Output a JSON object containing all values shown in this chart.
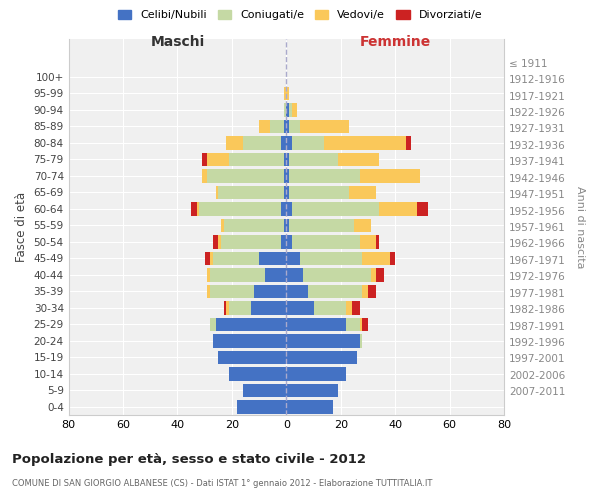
{
  "age_groups": [
    "0-4",
    "5-9",
    "10-14",
    "15-19",
    "20-24",
    "25-29",
    "30-34",
    "35-39",
    "40-44",
    "45-49",
    "50-54",
    "55-59",
    "60-64",
    "65-69",
    "70-74",
    "75-79",
    "80-84",
    "85-89",
    "90-94",
    "95-99",
    "100+"
  ],
  "birth_years": [
    "2007-2011",
    "2002-2006",
    "1997-2001",
    "1992-1996",
    "1987-1991",
    "1982-1986",
    "1977-1981",
    "1972-1976",
    "1967-1971",
    "1962-1966",
    "1957-1961",
    "1952-1956",
    "1947-1951",
    "1942-1946",
    "1937-1941",
    "1932-1936",
    "1927-1931",
    "1922-1926",
    "1917-1921",
    "1912-1916",
    "≤ 1911"
  ],
  "maschi": {
    "celibi": [
      18,
      16,
      21,
      25,
      27,
      26,
      13,
      12,
      8,
      10,
      2,
      1,
      2,
      1,
      1,
      1,
      2,
      1,
      0,
      0,
      0
    ],
    "coniugati": [
      0,
      0,
      0,
      0,
      0,
      2,
      8,
      16,
      20,
      17,
      22,
      22,
      30,
      24,
      28,
      20,
      14,
      5,
      1,
      0,
      0
    ],
    "vedovi": [
      0,
      0,
      0,
      0,
      0,
      0,
      1,
      1,
      1,
      1,
      1,
      1,
      1,
      1,
      2,
      8,
      6,
      4,
      0,
      1,
      0
    ],
    "divorziati": [
      0,
      0,
      0,
      0,
      0,
      0,
      1,
      0,
      0,
      2,
      2,
      0,
      2,
      0,
      0,
      2,
      0,
      0,
      0,
      0,
      0
    ]
  },
  "femmine": {
    "nubili": [
      17,
      19,
      22,
      26,
      27,
      22,
      10,
      8,
      6,
      5,
      2,
      1,
      2,
      1,
      1,
      1,
      2,
      1,
      1,
      0,
      0
    ],
    "coniugate": [
      0,
      0,
      0,
      0,
      1,
      5,
      12,
      20,
      25,
      23,
      25,
      24,
      32,
      22,
      26,
      18,
      12,
      4,
      1,
      0,
      0
    ],
    "vedove": [
      0,
      0,
      0,
      0,
      0,
      1,
      2,
      2,
      2,
      10,
      6,
      6,
      14,
      10,
      22,
      15,
      30,
      18,
      2,
      1,
      0
    ],
    "divorziate": [
      0,
      0,
      0,
      0,
      0,
      2,
      3,
      3,
      3,
      2,
      1,
      0,
      4,
      0,
      0,
      0,
      2,
      0,
      0,
      0,
      0
    ]
  },
  "colors": {
    "celibi": "#4472C4",
    "coniugati": "#c5d9a4",
    "vedovi": "#fac85a",
    "divorziati": "#cc2222"
  },
  "title": "Popolazione per età, sesso e stato civile - 2012",
  "subtitle": "COMUNE DI SAN GIORGIO ALBANESE (CS) - Dati ISTAT 1° gennaio 2012 - Elaborazione TUTTITALIA.IT",
  "xlabel_left": "Maschi",
  "xlabel_right": "Femmine",
  "ylabel_left": "Fasce di età",
  "ylabel_right": "Anni di nascita",
  "xlim": 80,
  "legend_labels": [
    "Celibi/Nubili",
    "Coniugati/e",
    "Vedovi/e",
    "Divorziati/e"
  ],
  "background_color": "#ffffff",
  "plot_bg": "#f0f0f0"
}
